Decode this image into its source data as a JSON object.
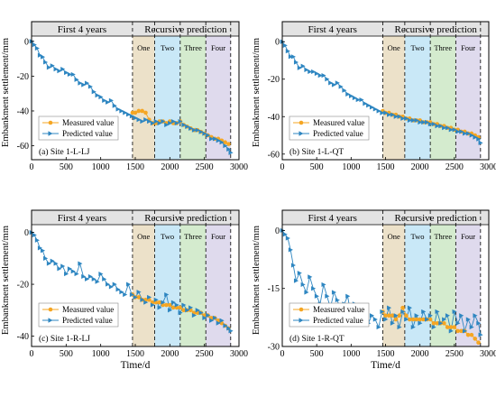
{
  "figure": {
    "shared_ylabel": "Embankment settlement/mm",
    "shared_xlabel": "Time/d",
    "phase_labels": [
      "First 4 years",
      "Recursive prediction"
    ],
    "stage_labels": [
      "One",
      "Two",
      "Three",
      "Four"
    ],
    "legend": [
      "Measured value",
      "Predicted value"
    ]
  },
  "colors": {
    "measured": "#F5A623",
    "predicted": "#2E86C1",
    "stage_one": "#E9DCC0",
    "stage_two": "#BFE4F6",
    "stage_three": "#CDE7C6",
    "stage_four": "#D9D3EA",
    "header_bg": "#E3E3E3"
  },
  "chart_data": [
    {
      "id": "1-L-LJ",
      "type": "line",
      "panel_label": "(a) Site 1-L-LJ",
      "xlabel": "",
      "ylabel": "Embankment settlement/mm",
      "xlim": [
        0,
        3000
      ],
      "ylim": [
        -68,
        3
      ],
      "xticks": [
        0,
        500,
        1000,
        1500,
        2000,
        2500,
        3000
      ],
      "yticks": [
        0,
        -20,
        -40,
        -60
      ],
      "stage_bounds": [
        1460,
        1780,
        2150,
        2520,
        2880
      ],
      "legend_position": "lower-left",
      "grid": false,
      "series": [
        {
          "name": "Predicted value",
          "style": "line-triangle",
          "x": [
            0,
            40,
            80,
            120,
            160,
            200,
            250,
            300,
            350,
            400,
            450,
            500,
            550,
            600,
            650,
            700,
            750,
            800,
            850,
            900,
            950,
            1000,
            1050,
            1100,
            1150,
            1200,
            1250,
            1300,
            1350,
            1400,
            1450,
            1500,
            1550,
            1600,
            1650,
            1700,
            1750,
            1800,
            1850,
            1900,
            1950,
            2000,
            2050,
            2100,
            2150,
            2200,
            2250,
            2300,
            2350,
            2400,
            2450,
            2500,
            2550,
            2600,
            2650,
            2700,
            2750,
            2800,
            2850,
            2880
          ],
          "y": [
            0,
            -2,
            -4,
            -8,
            -9,
            -12,
            -15,
            -14,
            -16,
            -17,
            -16,
            -18,
            -19,
            -19,
            -22,
            -24,
            -25,
            -24,
            -26,
            -29,
            -31,
            -32,
            -34,
            -35,
            -34,
            -37,
            -39,
            -40,
            -41,
            -42,
            -43,
            -44,
            -45,
            -46,
            -45,
            -46,
            -47,
            -46,
            -47,
            -46,
            -48,
            -47,
            -46,
            -47,
            -46,
            -48,
            -49,
            -50,
            -51,
            -51,
            -52,
            -53,
            -54,
            -56,
            -56,
            -57,
            -58,
            -60,
            -62,
            -64
          ]
        },
        {
          "name": "Measured value",
          "style": "line-circle",
          "x": [
            1460,
            1500,
            1550,
            1600,
            1650,
            1700,
            1750,
            1800,
            1850,
            1900,
            1950,
            2000,
            2050,
            2100,
            2150,
            2200,
            2250,
            2300,
            2350,
            2400,
            2450,
            2500,
            2550,
            2600,
            2650,
            2700,
            2750,
            2800,
            2850
          ],
          "y": [
            -41,
            -41,
            -40,
            -40,
            -41,
            -45,
            -47,
            -47,
            -46,
            -46,
            -47,
            -46,
            -47,
            -47,
            -46,
            -48,
            -49,
            -50,
            -51,
            -51,
            -52,
            -53,
            -54,
            -55,
            -56,
            -56,
            -57,
            -58,
            -59
          ]
        }
      ]
    },
    {
      "id": "1-L-QT",
      "type": "line",
      "panel_label": "(b) Site 1-L-QT",
      "xlabel": "",
      "ylabel": "Embankment settlement/mm",
      "xlim": [
        0,
        3000
      ],
      "ylim": [
        -63,
        3
      ],
      "xticks": [
        0,
        500,
        1000,
        1500,
        2000,
        2500,
        3000
      ],
      "yticks": [
        0,
        -20,
        -40,
        -60
      ],
      "stage_bounds": [
        1460,
        1780,
        2150,
        2520,
        2880
      ],
      "legend_position": "lower-left",
      "grid": false,
      "series": [
        {
          "name": "Predicted value",
          "style": "line-triangle",
          "x": [
            0,
            40,
            80,
            120,
            160,
            200,
            250,
            300,
            350,
            400,
            450,
            500,
            550,
            600,
            650,
            700,
            750,
            800,
            850,
            900,
            950,
            1000,
            1050,
            1100,
            1150,
            1200,
            1250,
            1300,
            1350,
            1400,
            1450,
            1500,
            1550,
            1600,
            1650,
            1700,
            1750,
            1800,
            1850,
            1900,
            1950,
            2000,
            2050,
            2100,
            2150,
            2200,
            2250,
            2300,
            2350,
            2400,
            2450,
            2500,
            2550,
            2600,
            2650,
            2700,
            2750,
            2800,
            2850,
            2880
          ],
          "y": [
            0,
            -2,
            -5,
            -8,
            -8,
            -11,
            -14,
            -13,
            -15,
            -16,
            -16,
            -17,
            -18,
            -18,
            -20,
            -22,
            -23,
            -22,
            -24,
            -26,
            -28,
            -29,
            -30,
            -31,
            -31,
            -33,
            -34,
            -35,
            -36,
            -37,
            -38,
            -38,
            -39,
            -39,
            -40,
            -40,
            -41,
            -41,
            -42,
            -42,
            -42,
            -43,
            -43,
            -43,
            -44,
            -44,
            -45,
            -45,
            -46,
            -46,
            -47,
            -47,
            -48,
            -48,
            -49,
            -49,
            -50,
            -51,
            -52,
            -54
          ]
        },
        {
          "name": "Measured value",
          "style": "line-circle",
          "x": [
            1460,
            1500,
            1550,
            1600,
            1650,
            1700,
            1750,
            1800,
            1850,
            1900,
            1950,
            2000,
            2050,
            2100,
            2150,
            2200,
            2250,
            2300,
            2350,
            2400,
            2450,
            2500,
            2550,
            2600,
            2650,
            2700,
            2750,
            2800,
            2850
          ],
          "y": [
            -37,
            -38,
            -38,
            -39,
            -39,
            -40,
            -40,
            -41,
            -41,
            -42,
            -42,
            -42,
            -43,
            -43,
            -43,
            -44,
            -44,
            -45,
            -45,
            -46,
            -46,
            -47,
            -47,
            -48,
            -48,
            -49,
            -49,
            -50,
            -51
          ]
        }
      ]
    },
    {
      "id": "1-R-LJ",
      "type": "line",
      "panel_label": "(c) Site 1-R-LJ",
      "xlabel": "Time/d",
      "ylabel": "Embankment settlement/mm",
      "xlim": [
        0,
        3000
      ],
      "ylim": [
        -44,
        3
      ],
      "xticks": [
        0,
        500,
        1000,
        1500,
        2000,
        2500,
        3000
      ],
      "yticks": [
        0,
        -20,
        -40
      ],
      "stage_bounds": [
        1460,
        1780,
        2150,
        2520,
        2880
      ],
      "legend_position": "lower-left",
      "grid": false,
      "series": [
        {
          "name": "Predicted value",
          "style": "line-triangle",
          "x": [
            0,
            40,
            80,
            120,
            160,
            200,
            250,
            300,
            350,
            400,
            450,
            500,
            550,
            600,
            650,
            700,
            750,
            800,
            850,
            900,
            950,
            1000,
            1050,
            1100,
            1150,
            1200,
            1250,
            1300,
            1350,
            1400,
            1450,
            1500,
            1550,
            1600,
            1650,
            1700,
            1750,
            1800,
            1850,
            1900,
            1950,
            2000,
            2050,
            2100,
            2150,
            2200,
            2250,
            2300,
            2350,
            2400,
            2450,
            2500,
            2550,
            2600,
            2650,
            2700,
            2750,
            2800,
            2850,
            2880
          ],
          "y": [
            0,
            -1,
            -3,
            -6,
            -7,
            -10,
            -12,
            -11,
            -12,
            -14,
            -13,
            -16,
            -14,
            -15,
            -16,
            -12,
            -17,
            -18,
            -17,
            -18,
            -19,
            -16,
            -18,
            -20,
            -21,
            -20,
            -22,
            -23,
            -24,
            -20,
            -24,
            -25,
            -23,
            -26,
            -27,
            -25,
            -28,
            -26,
            -29,
            -27,
            -24,
            -30,
            -27,
            -28,
            -31,
            -28,
            -30,
            -29,
            -32,
            -30,
            -31,
            -33,
            -32,
            -34,
            -33,
            -35,
            -34,
            -36,
            -37,
            -38
          ]
        },
        {
          "name": "Measured value",
          "style": "line-circle",
          "x": [
            1460,
            1500,
            1550,
            1600,
            1650,
            1700,
            1750,
            1800,
            1850,
            1900,
            1950,
            2000,
            2050,
            2100,
            2150,
            2200,
            2250,
            2300,
            2350,
            2400,
            2450,
            2500,
            2550,
            2600,
            2650,
            2700,
            2750,
            2800,
            2850
          ],
          "y": [
            -24,
            -25,
            -25,
            -26,
            -26,
            -26,
            -27,
            -27,
            -27,
            -28,
            -28,
            -28,
            -29,
            -29,
            -29,
            -30,
            -30,
            -30,
            -31,
            -31,
            -31,
            -32,
            -32,
            -33,
            -33,
            -34,
            -35,
            -36,
            -37
          ]
        }
      ]
    },
    {
      "id": "1-R-QT",
      "type": "line",
      "panel_label": "(d) Site 1-R-QT",
      "xlabel": "Time/d",
      "ylabel": "Embankment settlement/mm",
      "xlim": [
        0,
        3000
      ],
      "ylim": [
        -30,
        1.5
      ],
      "xticks": [
        0,
        500,
        1000,
        1500,
        2000,
        2500,
        3000
      ],
      "yticks": [
        0,
        -15,
        -30
      ],
      "stage_bounds": [
        1460,
        1780,
        2150,
        2520,
        2880
      ],
      "legend_position": "lower-left",
      "grid": false,
      "series": [
        {
          "name": "Predicted value",
          "style": "line-triangle",
          "x": [
            0,
            40,
            80,
            120,
            160,
            200,
            250,
            300,
            350,
            400,
            450,
            500,
            550,
            600,
            650,
            700,
            750,
            800,
            850,
            900,
            950,
            1000,
            1050,
            1100,
            1150,
            1200,
            1250,
            1300,
            1350,
            1400,
            1450,
            1500,
            1550,
            1600,
            1650,
            1700,
            1750,
            1800,
            1850,
            1900,
            1950,
            2000,
            2050,
            2100,
            2150,
            2200,
            2250,
            2300,
            2350,
            2400,
            2450,
            2500,
            2550,
            2600,
            2650,
            2700,
            2750,
            2800,
            2850,
            2880
          ],
          "y": [
            0,
            -1,
            -2,
            -5,
            -9,
            -13,
            -11,
            -14,
            -16,
            -12,
            -15,
            -17,
            -19,
            -14,
            -17,
            -20,
            -16,
            -18,
            -21,
            -19,
            -17,
            -22,
            -19,
            -23,
            -21,
            -20,
            -24,
            -22,
            -23,
            -25,
            -21,
            -23,
            -20,
            -24,
            -22,
            -25,
            -21,
            -23,
            -20,
            -25,
            -22,
            -24,
            -21,
            -23,
            -22,
            -25,
            -21,
            -24,
            -23,
            -22,
            -26,
            -21,
            -24,
            -22,
            -26,
            -23,
            -25,
            -22,
            -24,
            -27
          ]
        },
        {
          "name": "Measured value",
          "style": "line-circle",
          "x": [
            1460,
            1500,
            1550,
            1600,
            1650,
            1700,
            1750,
            1800,
            1850,
            1900,
            1950,
            2000,
            2050,
            2100,
            2150,
            2200,
            2250,
            2300,
            2350,
            2400,
            2450,
            2500,
            2550,
            2600,
            2650,
            2700,
            2750,
            2800,
            2850
          ],
          "y": [
            -21,
            -22,
            -22,
            -22,
            -23,
            -22,
            -20,
            -22,
            -23,
            -23,
            -23,
            -23,
            -23,
            -23,
            -23,
            -24,
            -24,
            -24,
            -24,
            -25,
            -25,
            -25,
            -26,
            -26,
            -26,
            -27,
            -27,
            -28,
            -29
          ]
        }
      ]
    }
  ]
}
